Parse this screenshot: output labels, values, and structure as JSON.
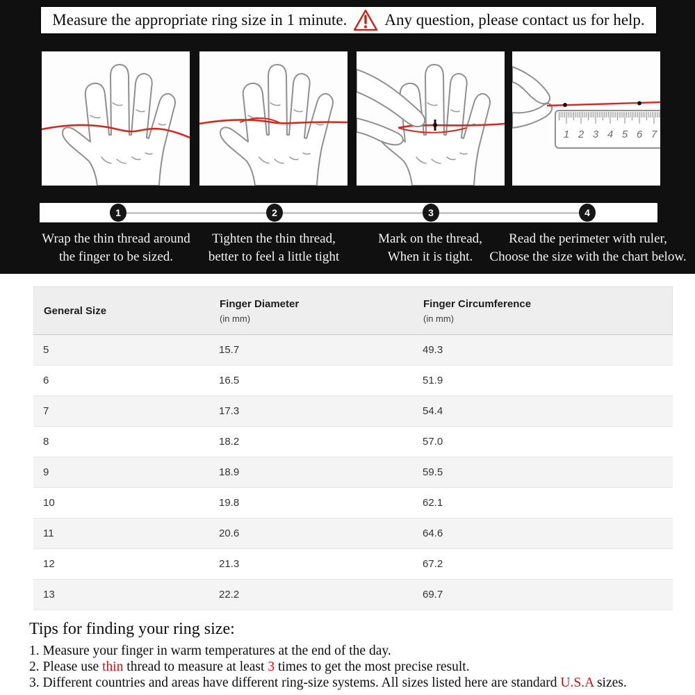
{
  "banner": {
    "text_left": "Measure the appropriate ring size in 1 minute.",
    "text_right": "Any question, please contact us for help.",
    "warning_icon": "warning-triangle-icon"
  },
  "steps": {
    "numbers": [
      "1",
      "2",
      "3",
      "4"
    ],
    "captions": [
      {
        "line1": "Wrap the thin thread around",
        "line2": "the finger to be sized."
      },
      {
        "line1": "Tighten the thin thread,",
        "line2": "better to feel a little tight"
      },
      {
        "line1": "Mark on the thread,",
        "line2": "When it is tight."
      },
      {
        "line1": "Read the perimeter with ruler,",
        "line2": "Choose the size with the chart below."
      }
    ],
    "illustration_names": [
      "hand-with-thread-wrapped",
      "hand-with-thread-tightened",
      "hand-marking-thread",
      "thread-measured-on-ruler"
    ]
  },
  "ruler": {
    "numbers": [
      "1",
      "2",
      "3",
      "4",
      "5",
      "6",
      "7"
    ]
  },
  "table": {
    "headers": [
      {
        "title": "General Size",
        "subtitle": ""
      },
      {
        "title": "Finger Diameter",
        "subtitle": "(in mm)"
      },
      {
        "title": "Finger Circumference",
        "subtitle": "(in mm)"
      }
    ],
    "rows": [
      {
        "size": "5",
        "diameter": "15.7",
        "circumference": "49.3"
      },
      {
        "size": "6",
        "diameter": "16.5",
        "circumference": "51.9"
      },
      {
        "size": "7",
        "diameter": "17.3",
        "circumference": "54.4"
      },
      {
        "size": "8",
        "diameter": "18.2",
        "circumference": "57.0"
      },
      {
        "size": "9",
        "diameter": "18.9",
        "circumference": "59.5"
      },
      {
        "size": "10",
        "diameter": "19.8",
        "circumference": "62.1"
      },
      {
        "size": "11",
        "diameter": "20.6",
        "circumference": "64.6"
      },
      {
        "size": "12",
        "diameter": "21.3",
        "circumference": "67.2"
      },
      {
        "size": "13",
        "diameter": "22.2",
        "circumference": "69.7"
      }
    ]
  },
  "tips": {
    "heading": "Tips for finding your ring size:",
    "lines": [
      [
        {
          "text": "1. Measure your finger in warm temperatures at the end of the day."
        }
      ],
      [
        {
          "text": "2. Please use "
        },
        {
          "text": "thin",
          "red": true
        },
        {
          "text": " thread to measure at least "
        },
        {
          "text": "3",
          "red": true
        },
        {
          "text": " times to get the most precise result."
        }
      ],
      [
        {
          "text": "3. Different countries and areas have different ring-size systems. All sizes listed here are standard "
        },
        {
          "text": "U.S.A",
          "red": true
        },
        {
          "text": " sizes."
        }
      ]
    ]
  },
  "colors": {
    "accent_red": "#cc2218",
    "thread_red": "#d6281e",
    "section_black": "#101010",
    "table_header_bg": "#eeeeee",
    "row_alt_bg": "#f4f4f4"
  }
}
